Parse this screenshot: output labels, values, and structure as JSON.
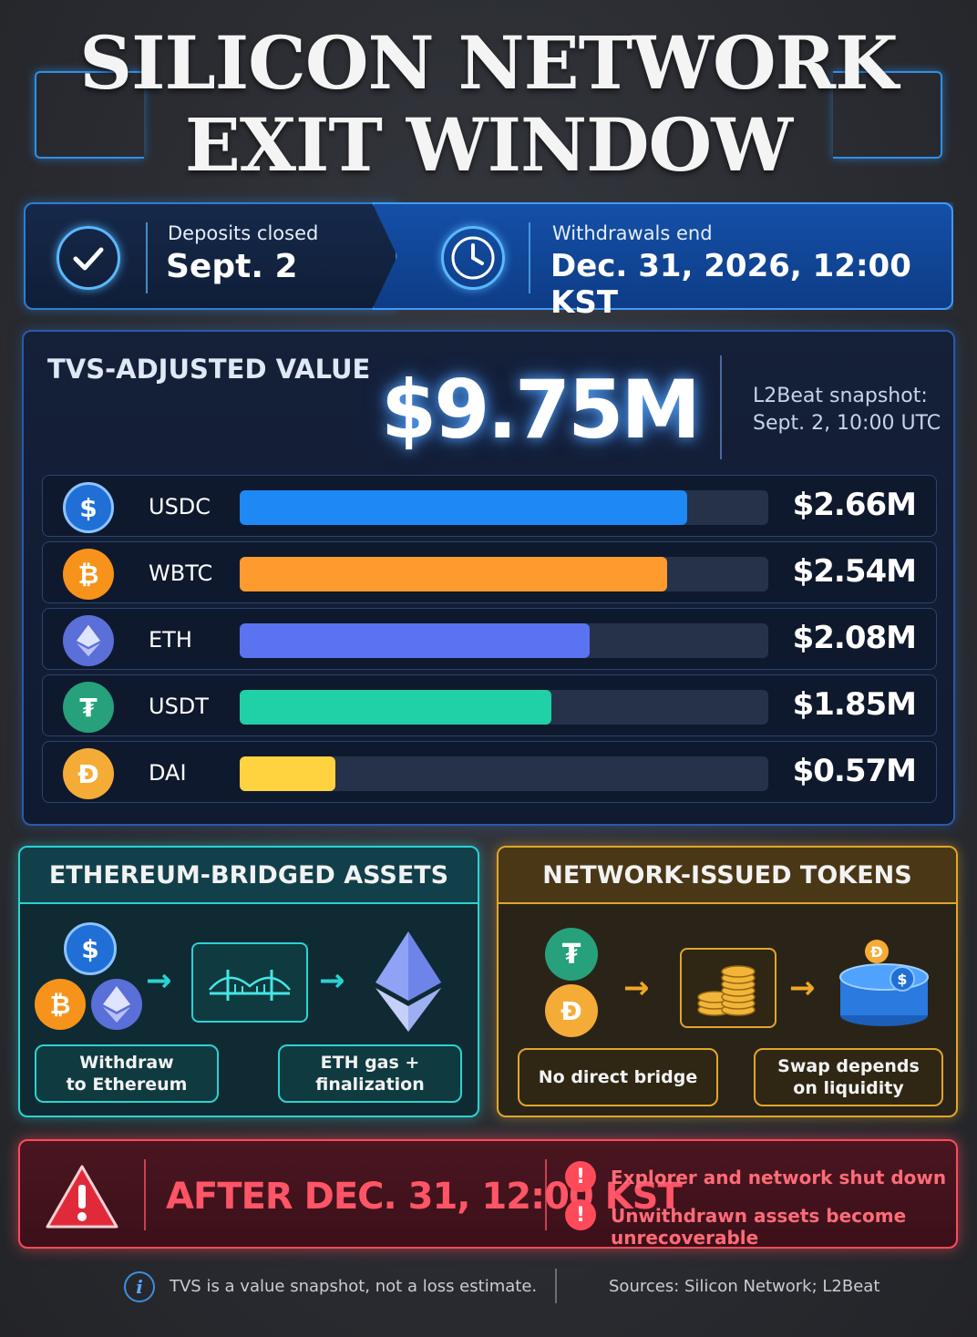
{
  "title": {
    "line1": "SILICON NETWORK",
    "line2": "EXIT WINDOW"
  },
  "banner": {
    "deposits_label": "Deposits closed",
    "deposits_value": "Sept. 2",
    "withdrawals_label": "Withdrawals end",
    "withdrawals_value": "Dec. 31, 2026, 12:00 KST"
  },
  "tvs": {
    "label": "TVS-ADJUSTED VALUE",
    "value": "$9.75M",
    "snapshot_line1": "L2Beat snapshot:",
    "snapshot_line2": "Sept. 2, 10:00 UTC"
  },
  "chart_data": {
    "type": "bar",
    "orientation": "horizontal",
    "title": "TVS-ADJUSTED VALUE",
    "categories": [
      "USDC",
      "WBTC",
      "ETH",
      "USDT",
      "DAI"
    ],
    "values": [
      2.66,
      2.54,
      2.08,
      1.85,
      0.57
    ],
    "value_labels": [
      "$2.66M",
      "$2.54M",
      "$2.08M",
      "$1.85M",
      "$0.57M"
    ],
    "unit": "$M",
    "xlim": [
      0,
      3.14
    ],
    "grid": false,
    "legend": "none",
    "colors": [
      "#1e88f5",
      "#ff9a2e",
      "#5a73f0",
      "#20d0a6",
      "#ffd23f"
    ],
    "coin_colors": [
      "#1f6fd6",
      "#f7931a",
      "#5b6fd9",
      "#26a17b",
      "#f5ac37"
    ],
    "coin_icons": [
      "usdc-icon",
      "bitcoin-icon",
      "ethereum-icon",
      "tether-icon",
      "dai-icon"
    ]
  },
  "boxes": {
    "bridged": {
      "title": "ETHEREUM-BRIDGED ASSETS",
      "pill1": "Withdraw\nto Ethereum",
      "pill2": "ETH gas +\nfinalization",
      "accent": "#2ad3d3"
    },
    "native": {
      "title": "NETWORK-ISSUED TOKENS",
      "pill1": "No direct bridge",
      "pill2": "Swap depends\non liquidity",
      "accent": "#e2a62a"
    }
  },
  "warning": {
    "title": "AFTER DEC. 31, 12:00 KST",
    "item1": "Explorer and network shut down",
    "item2": "Unwithdrawn assets become unrecoverable",
    "accent": "#ff4a5a"
  },
  "footer": {
    "note": "TVS is a value snapshot, not a loss estimate.",
    "sources": "Sources: Silicon Network; L2Beat"
  }
}
